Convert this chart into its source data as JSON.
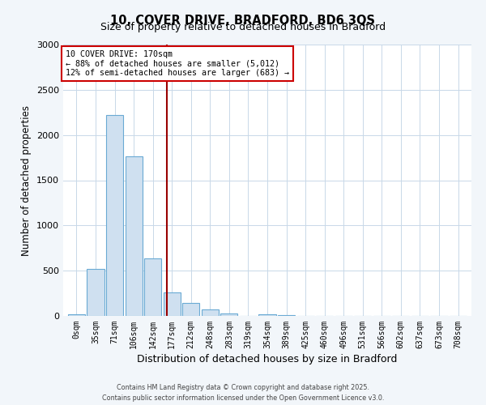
{
  "title": "10, COVER DRIVE, BRADFORD, BD6 3QS",
  "subtitle": "Size of property relative to detached houses in Bradford",
  "xlabel": "Distribution of detached houses by size in Bradford",
  "ylabel": "Number of detached properties",
  "categories": [
    "0sqm",
    "35sqm",
    "71sqm",
    "106sqm",
    "142sqm",
    "177sqm",
    "212sqm",
    "248sqm",
    "283sqm",
    "319sqm",
    "354sqm",
    "389sqm",
    "425sqm",
    "460sqm",
    "496sqm",
    "531sqm",
    "566sqm",
    "602sqm",
    "637sqm",
    "673sqm",
    "708sqm"
  ],
  "values": [
    20,
    520,
    2220,
    1760,
    635,
    260,
    140,
    75,
    30,
    0,
    15,
    5,
    0,
    0,
    0,
    0,
    0,
    0,
    0,
    0,
    0
  ],
  "bar_color_face": "#cfe0f0",
  "bar_color_edge": "#6aaad4",
  "vline_color": "#990000",
  "vline_position": 4.75,
  "annotation_line1": "10 COVER DRIVE: 170sqm",
  "annotation_line2": "← 88% of detached houses are smaller (5,012)",
  "annotation_line3": "12% of semi-detached houses are larger (683) →",
  "annotation_box_color": "#ffffff",
  "annotation_box_edge": "#cc0000",
  "ylim": [
    0,
    3000
  ],
  "yticks": [
    0,
    500,
    1000,
    1500,
    2000,
    2500,
    3000
  ],
  "footer1": "Contains HM Land Registry data © Crown copyright and database right 2025.",
  "footer2": "Contains public sector information licensed under the Open Government Licence v3.0.",
  "bg_color": "#f2f6fa",
  "plot_bg_color": "#ffffff",
  "grid_color": "#c8d8e8"
}
